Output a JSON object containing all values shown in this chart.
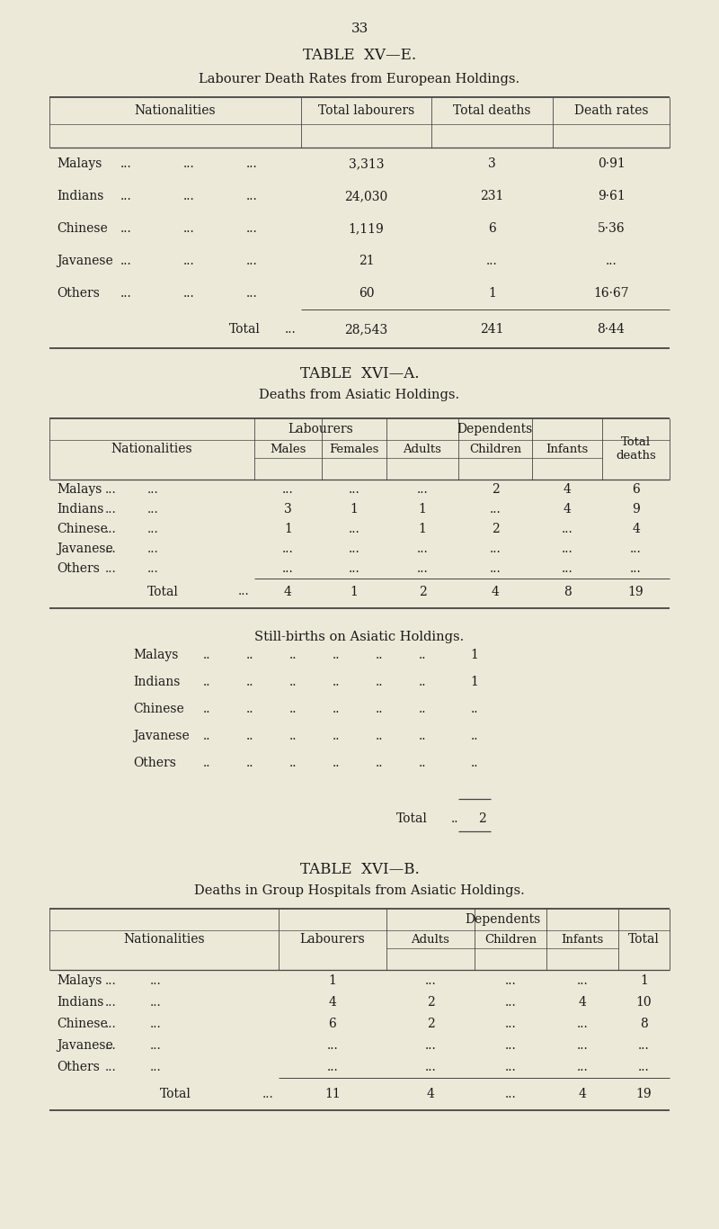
{
  "page_number": "33",
  "bg_color": "#ede9d8",
  "text_color": "#1a1a1a",
  "table1_title": "TABLE  XV—E.",
  "table1_subtitle": "Labourer Death Rates from European Holdings.",
  "table2_title": "TABLE  XVI—A.",
  "table2_subtitle": "Deaths from Asiatic Holdings.",
  "table3_title": "TABLE  XVI—B.",
  "table3_subtitle": "Deaths in Group Hospitals from Asiatic Holdings.",
  "stillbirths_title": "Still-births on Asiatic Holdings.",
  "dot3": "...",
  "dot2": "..",
  "t1_rows": [
    [
      "Malays",
      "3,313",
      "3",
      "0·91"
    ],
    [
      "Indians",
      "24,030",
      "231",
      "9·61"
    ],
    [
      "Chinese",
      "1,119",
      "6",
      "5·36"
    ],
    [
      "Javanese",
      "21",
      "...",
      "..."
    ],
    [
      "Others",
      "60",
      "1",
      "16·67"
    ]
  ],
  "t1_total": [
    "28,543",
    "241",
    "8·44"
  ],
  "t2_rows": [
    [
      "Malays",
      "...",
      "...",
      "...",
      "2",
      "4",
      "6"
    ],
    [
      "Indians",
      "3",
      "1",
      "1",
      "...",
      "4",
      "9"
    ],
    [
      "Chinese",
      "1",
      "...",
      "1",
      "2",
      "...",
      "4"
    ],
    [
      "Javanese",
      "...",
      "...",
      "...",
      "...",
      "...",
      "..."
    ],
    [
      "Others",
      "...",
      "...",
      "...",
      "...",
      "...",
      "..."
    ]
  ],
  "t2_total": [
    "4",
    "1",
    "2",
    "4",
    "8",
    "19"
  ],
  "sb_rows": [
    [
      "Malays",
      "1"
    ],
    [
      "Indians",
      "1"
    ],
    [
      "Chinese",
      ".."
    ],
    [
      "Javanese",
      ".."
    ],
    [
      "Others",
      ".."
    ]
  ],
  "sb_total": "2",
  "t3_rows": [
    [
      "Malays",
      "1",
      "...",
      "...",
      "...",
      "1"
    ],
    [
      "Indians",
      "4",
      "2",
      "...",
      "4",
      "10"
    ],
    [
      "Chinese",
      "6",
      "2",
      "...",
      "...",
      "8"
    ],
    [
      "Javanese",
      "...",
      "...",
      "...",
      "...",
      "..."
    ],
    [
      "Others",
      "...",
      "...",
      "...",
      "...",
      "..."
    ]
  ],
  "t3_total": [
    "11",
    "4",
    "...",
    "4",
    "19"
  ]
}
